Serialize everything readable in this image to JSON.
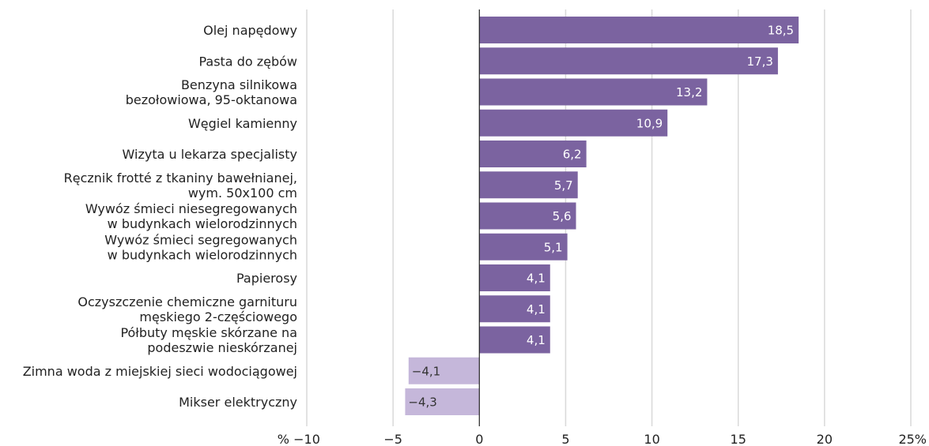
{
  "chart_data": {
    "type": "bar",
    "orientation": "horizontal",
    "title": "",
    "xlabel": "",
    "ylabel": "",
    "unit_label": "%",
    "xlim": [
      -10,
      25
    ],
    "x_ticks": [
      -10,
      -5,
      0,
      5,
      10,
      15,
      20,
      25
    ],
    "x_tick_labels": [
      "−10",
      "−5",
      "0",
      "5",
      "10",
      "15",
      "20",
      "25%"
    ],
    "grid": true,
    "legend": "none",
    "colors": {
      "positive": "#7b63a0",
      "negative": "#c5b7da",
      "positive_label": "#ffffff",
      "negative_label": "#333333"
    },
    "categories": [
      [
        "Olej napędowy"
      ],
      [
        "Pasta do zębów"
      ],
      [
        "Benzyna silnikowa",
        "bezołowiowa, 95-oktanowa"
      ],
      [
        "Węgiel kamienny"
      ],
      [
        "Wizyta u lekarza specjalisty"
      ],
      [
        "Ręcznik frotté z tkaniny bawełnianej,",
        "wym. 50x100 cm"
      ],
      [
        "Wywóz śmieci niesegregowanych",
        "w budynkach wielorodzinnych"
      ],
      [
        "Wywóz śmieci segregowanych",
        "w budynkach wielorodzinnych"
      ],
      [
        "Papierosy"
      ],
      [
        "Oczyszczenie chemiczne garnituru",
        "męskiego 2-częściowego"
      ],
      [
        "Półbuty męskie skórzane na",
        "podeszwie nieskórzanej"
      ],
      [
        "Zimna woda z miejskiej sieci wodociągowej"
      ],
      [
        "Mikser elektryczny"
      ]
    ],
    "values": [
      18.5,
      17.3,
      13.2,
      10.9,
      6.2,
      5.7,
      5.6,
      5.1,
      4.1,
      4.1,
      4.1,
      -4.1,
      -4.3
    ],
    "value_labels": [
      "18,5",
      "17,3",
      "13,2",
      "10,9",
      "6,2",
      "5,7",
      "5,6",
      "5,1",
      "4,1",
      "4,1",
      "4,1",
      "−4,1",
      "−4,3"
    ]
  }
}
